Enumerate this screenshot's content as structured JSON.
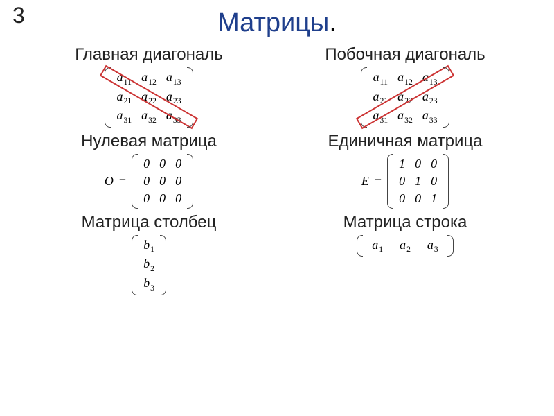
{
  "page_number": "3",
  "title_word": "Матрицы",
  "title_dot": ".",
  "colors": {
    "title": "#1f3f8c",
    "text": "#222222",
    "stroke": "#cc3333",
    "background": "#ffffff"
  },
  "font_sizes": {
    "page_number": 32,
    "title": 38,
    "label": 24,
    "math": 18
  },
  "sections": [
    {
      "left": {
        "label": "Главная диагональ",
        "diag": {
          "angle": 30,
          "width": 150
        },
        "matrix": {
          "rows": [
            [
              [
                "a",
                "11"
              ],
              [
                "a",
                "12"
              ],
              [
                "a",
                "13"
              ]
            ],
            [
              [
                "a",
                "21"
              ],
              [
                "a",
                "22"
              ],
              [
                "a",
                "23"
              ]
            ],
            [
              [
                "a",
                "31"
              ],
              [
                "a",
                "32"
              ],
              [
                "a",
                "33"
              ]
            ]
          ]
        }
      },
      "right": {
        "label": "Побочная диагональ",
        "diag": {
          "angle": -30,
          "width": 150
        },
        "matrix": {
          "rows": [
            [
              [
                "a",
                "11"
              ],
              [
                "a",
                "12"
              ],
              [
                "a",
                "13"
              ]
            ],
            [
              [
                "a",
                "21"
              ],
              [
                "a",
                "22"
              ],
              [
                "a",
                "23"
              ]
            ],
            [
              [
                "a",
                "31"
              ],
              [
                "a",
                "32"
              ],
              [
                "a",
                "33"
              ]
            ]
          ]
        }
      }
    },
    {
      "left": {
        "label": "Нулевая матрица",
        "lead": "O",
        "matrix": {
          "upright": true,
          "rows": [
            [
              [
                "0",
                ""
              ],
              [
                "0",
                ""
              ],
              [
                "0",
                ""
              ]
            ],
            [
              [
                "0",
                ""
              ],
              [
                "0",
                ""
              ],
              [
                "0",
                ""
              ]
            ],
            [
              [
                "0",
                ""
              ],
              [
                "0",
                ""
              ],
              [
                "0",
                ""
              ]
            ]
          ]
        }
      },
      "right": {
        "label": "Единичная матрица",
        "lead": "E",
        "matrix": {
          "upright": true,
          "rows": [
            [
              [
                "1",
                ""
              ],
              [
                "0",
                ""
              ],
              [
                "0",
                ""
              ]
            ],
            [
              [
                "0",
                ""
              ],
              [
                "1",
                ""
              ],
              [
                "0",
                ""
              ]
            ],
            [
              [
                "0",
                ""
              ],
              [
                "0",
                ""
              ],
              [
                "1",
                ""
              ]
            ]
          ]
        }
      }
    },
    {
      "left": {
        "label": "Матрица столбец",
        "matrix": {
          "rows": [
            [
              [
                "b",
                "1"
              ]
            ],
            [
              [
                "b",
                "2"
              ]
            ],
            [
              [
                "b",
                "3"
              ]
            ]
          ]
        }
      },
      "right": {
        "label": "Матрица строка",
        "matrix": {
          "rowmatrix": true,
          "rows": [
            [
              [
                "a",
                "1"
              ],
              [
                "a",
                "2"
              ],
              [
                "a",
                "3"
              ]
            ]
          ]
        }
      }
    }
  ]
}
